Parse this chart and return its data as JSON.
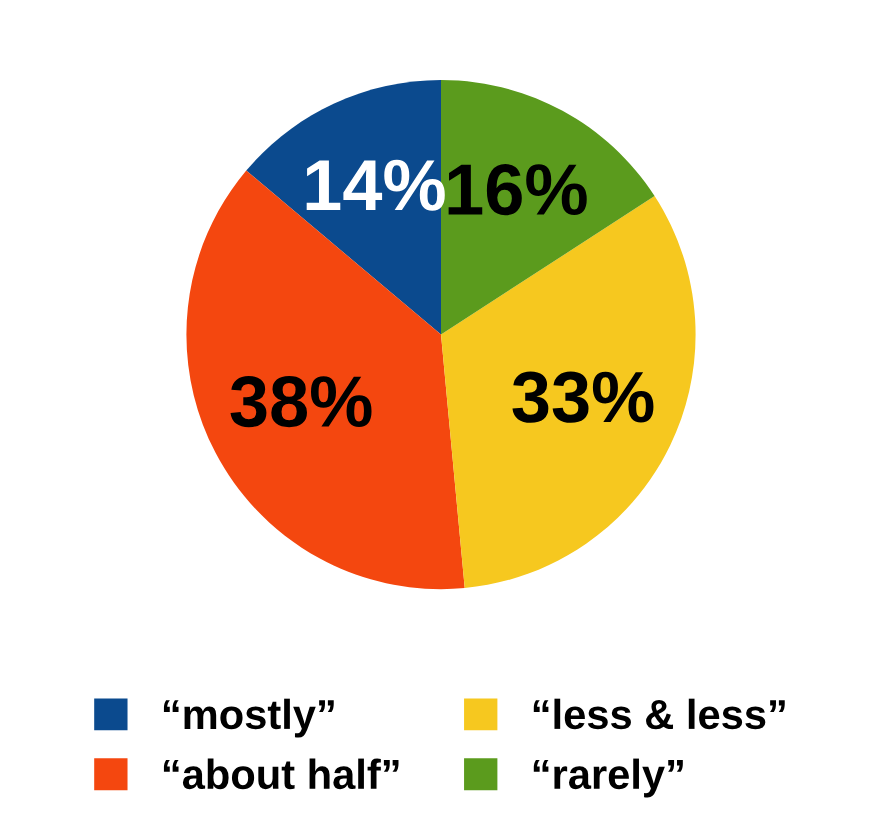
{
  "chart_data": {
    "type": "pie",
    "categories": [
      "“mostly”",
      "“about half”",
      "“less & less”",
      "“rarely”"
    ],
    "values": [
      14,
      38,
      33,
      16
    ],
    "value_labels": [
      "14%",
      "38%",
      "33%",
      "16%"
    ],
    "colors": [
      "#0b4a8e",
      "#f4470f",
      "#f6c81f",
      "#5b9b1d"
    ],
    "legend": "bottom"
  }
}
